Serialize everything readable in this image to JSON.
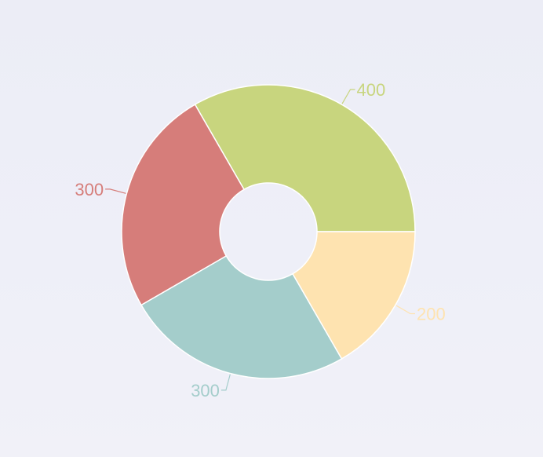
{
  "chart_data": {
    "type": "pie",
    "donut": true,
    "start_angle_deg": 0,
    "direction": "counterclockwise",
    "slices": [
      {
        "value": 400,
        "label": "400",
        "color": "#c8d57e"
      },
      {
        "value": 300,
        "label": "300",
        "color": "#d67d7a"
      },
      {
        "value": 300,
        "label": "300",
        "color": "#a4cdcb"
      },
      {
        "value": 200,
        "label": "200",
        "color": "#fee3b0"
      }
    ],
    "legend": "none",
    "grid": false
  },
  "decorations": {
    "moon_icon": "crescent-moon-icon",
    "moon_color": "#ffffff"
  }
}
